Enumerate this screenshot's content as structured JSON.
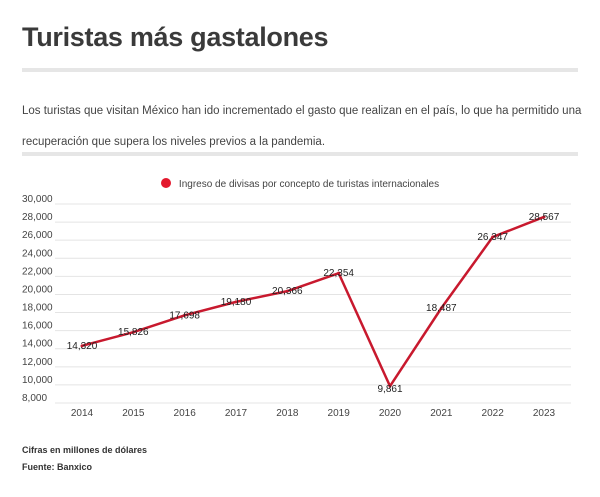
{
  "header": {
    "title": "Turistas más gastalones",
    "description": "Los turistas que visitan México han ido incrementado el gasto que realizan en el país,  lo que ha permitido una recuperación que supera los niveles previos a la pandemia."
  },
  "chart_data": {
    "type": "line",
    "title": "",
    "xlabel": "",
    "ylabel": "",
    "categories": [
      "2014",
      "2015",
      "2016",
      "2017",
      "2018",
      "2019",
      "2020",
      "2021",
      "2022",
      "2023"
    ],
    "series": [
      {
        "name": "Ingreso de divisas por concepto de turistas internacionales",
        "values": [
          14320,
          15826,
          17698,
          19180,
          20366,
          22354,
          9861,
          18487,
          26347,
          28567
        ],
        "labels": [
          "14,320",
          "15,826",
          "17,698",
          "19,180",
          "20,366",
          "22,354",
          "9,861",
          "18,487",
          "26,347",
          "28,567"
        ],
        "color": "#c8192e"
      }
    ],
    "ylim": [
      8000,
      30000
    ],
    "yticks": [
      8000,
      10000,
      12000,
      14000,
      16000,
      18000,
      20000,
      22000,
      24000,
      26000,
      28000,
      30000
    ],
    "ytick_labels": [
      "8,000",
      "10,000",
      "12,000",
      "14,000",
      "16,000",
      "18,000",
      "20,000",
      "22,000",
      "24,000",
      "26,000",
      "28,000",
      "30,000"
    ],
    "grid": true,
    "legend_position": "top-center",
    "legend_color": "#e3182d"
  },
  "footer": {
    "note": "Cifras en millones de dólares",
    "source": "Fuente: Banxico"
  }
}
